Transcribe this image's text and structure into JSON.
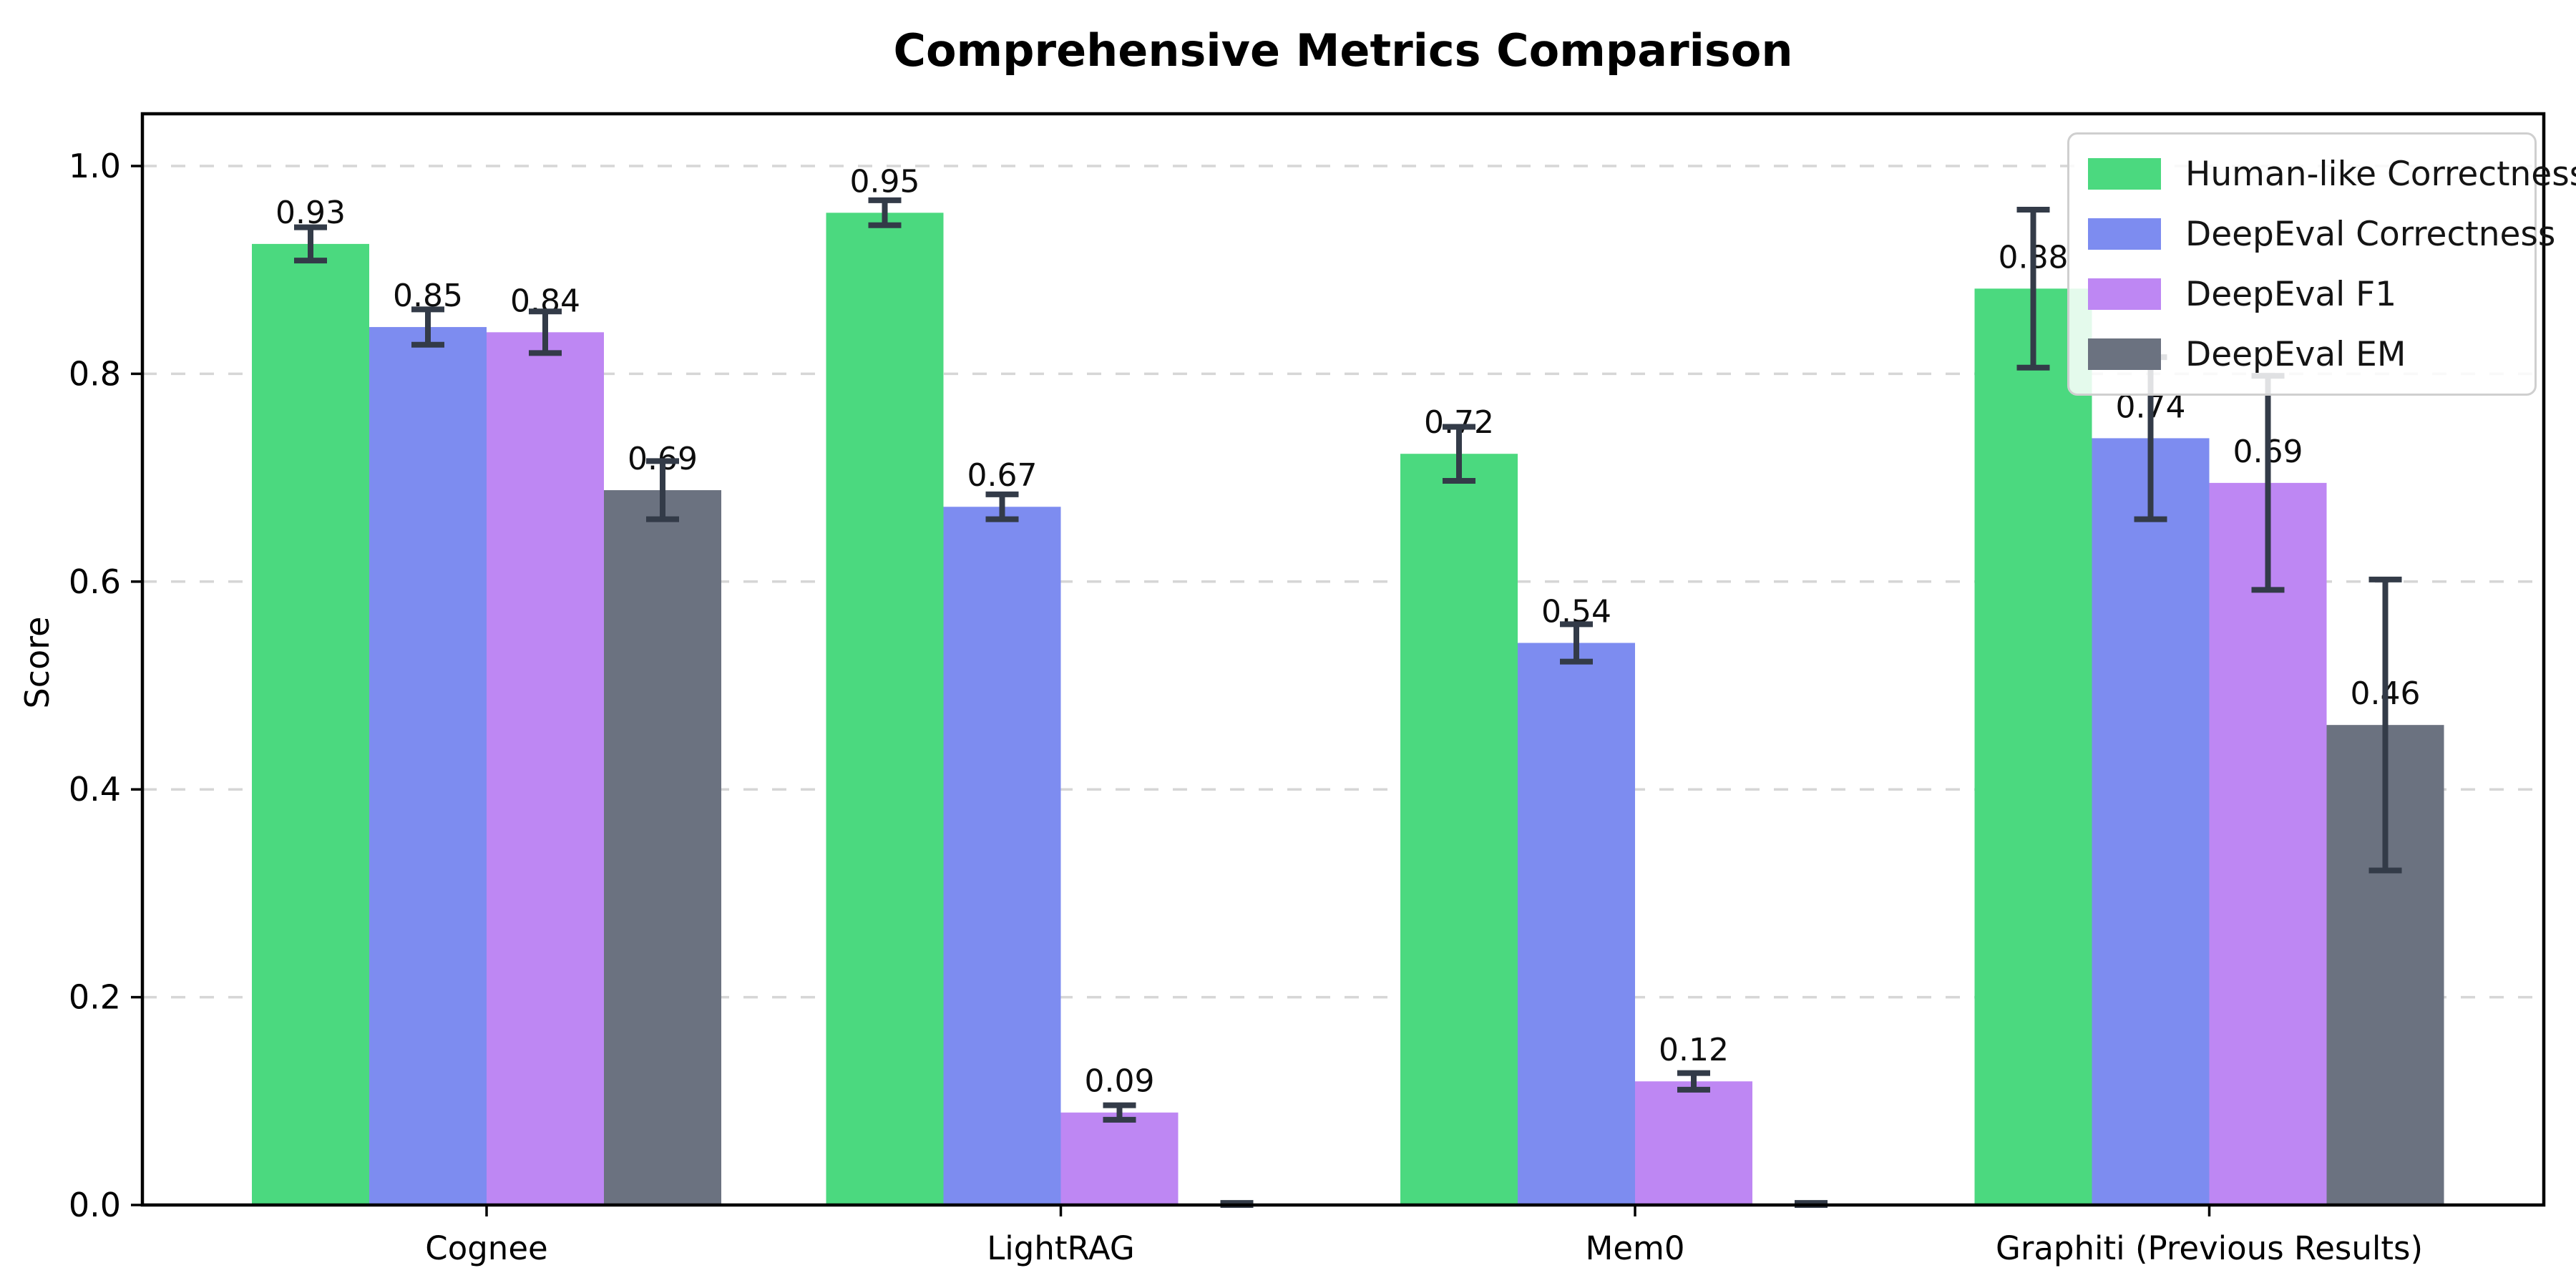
{
  "chart_data": {
    "type": "bar",
    "title": "Comprehensive Metrics Comparison",
    "ylabel": "Score",
    "xlabel": "",
    "ylim": [
      0,
      1.05
    ],
    "yticks": [
      "0.0",
      "0.2",
      "0.4",
      "0.6",
      "0.8",
      "1.0"
    ],
    "grid": "horizontal dashed",
    "grid_color": "#d6d6d6",
    "legend_position": "upper right",
    "error_bar_color": "#333b48",
    "value_label_color": "#0d0d0d",
    "categories": [
      "Cognee",
      "LightRAG",
      "Mem0",
      "Graphiti (Previous Results)"
    ],
    "series": [
      {
        "name": "Human-like Correctness",
        "color": "#4bd97f",
        "values": [
          0.925,
          0.955,
          0.723,
          0.882
        ],
        "errors": [
          0.016,
          0.012,
          0.026,
          0.076
        ],
        "labels": [
          "0.93",
          "0.95",
          "0.72",
          "0.88"
        ]
      },
      {
        "name": "DeepEval Correctness",
        "color": "#7d8cf0",
        "values": [
          0.845,
          0.672,
          0.541,
          0.738
        ],
        "errors": [
          0.017,
          0.012,
          0.018,
          0.078
        ],
        "labels": [
          "0.85",
          "0.67",
          "0.54",
          "0.74"
        ]
      },
      {
        "name": "DeepEval F1",
        "color": "#be87f3",
        "values": [
          0.84,
          0.089,
          0.119,
          0.695
        ],
        "errors": [
          0.02,
          0.007,
          0.008,
          0.103
        ],
        "labels": [
          "0.84",
          "0.09",
          "0.12",
          "0.69"
        ]
      },
      {
        "name": "DeepEval EM",
        "color": "#6b7280",
        "values": [
          0.688,
          0.0,
          0.0,
          0.462
        ],
        "errors": [
          0.028,
          0.002,
          0.002,
          0.14
        ],
        "labels": [
          "0.69",
          "",
          "",
          "0.46"
        ]
      }
    ]
  }
}
